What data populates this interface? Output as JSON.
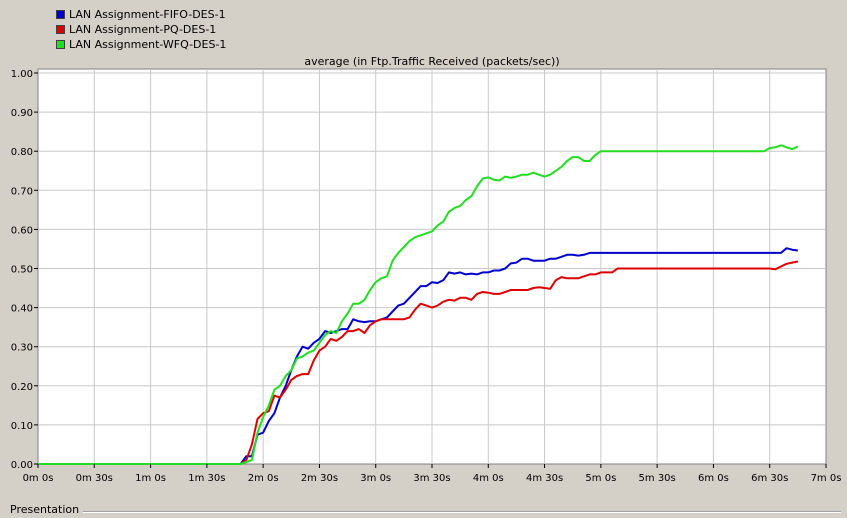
{
  "chart_data": {
    "type": "line",
    "title": "average (in Ftp.Traffic Received (packets/sec))",
    "xlabel": "",
    "ylabel": "",
    "xlim": [
      0,
      420
    ],
    "ylim": [
      0,
      1.0
    ],
    "x_ticks": [
      0,
      30,
      60,
      90,
      120,
      150,
      180,
      210,
      240,
      270,
      300,
      330,
      360,
      390,
      420
    ],
    "x_tick_labels": [
      "0m 0s",
      "0m 30s",
      "1m 0s",
      "1m 30s",
      "2m 0s",
      "2m 30s",
      "3m 0s",
      "3m 30s",
      "4m 0s",
      "4m 30s",
      "5m 0s",
      "5m 30s",
      "6m 0s",
      "6m 30s",
      "7m 0s"
    ],
    "y_ticks": [
      0,
      0.1,
      0.2,
      0.3,
      0.4,
      0.5,
      0.6,
      0.7,
      0.8,
      0.9,
      1.0
    ],
    "y_tick_labels": [
      "0.00",
      "0.10",
      "0.20",
      "0.30",
      "0.40",
      "0.50",
      "0.60",
      "0.70",
      "0.80",
      "0.90",
      "1.00"
    ],
    "grid": true,
    "legend_position": "top-left",
    "series": [
      {
        "name": "LAN Assignment-FIFO-DES-1",
        "color": "#0000cc",
        "x": [
          0,
          108,
          111,
          114,
          117,
          120,
          123,
          126,
          129,
          132,
          135,
          138,
          141,
          144,
          147,
          150,
          153,
          156,
          159,
          162,
          165,
          168,
          171,
          174,
          177,
          180,
          183,
          186,
          189,
          192,
          195,
          198,
          201,
          204,
          207,
          210,
          213,
          216,
          219,
          222,
          225,
          228,
          231,
          234,
          237,
          240,
          243,
          246,
          249,
          252,
          255,
          258,
          261,
          264,
          267,
          270,
          273,
          276,
          279,
          282,
          285,
          288,
          291,
          294,
          297,
          300,
          303,
          306,
          309,
          312,
          315,
          318,
          321,
          324,
          327,
          330,
          333,
          336,
          339,
          342,
          345,
          348,
          351,
          354,
          357,
          360,
          363,
          366,
          369,
          372,
          375,
          378,
          381,
          384,
          387,
          390,
          393,
          396,
          399,
          402,
          405
        ],
        "y": [
          0,
          0,
          0.02,
          0.02,
          0.075,
          0.08,
          0.11,
          0.13,
          0.17,
          0.2,
          0.24,
          0.275,
          0.3,
          0.295,
          0.31,
          0.32,
          0.34,
          0.335,
          0.34,
          0.345,
          0.345,
          0.37,
          0.365,
          0.363,
          0.365,
          0.365,
          0.37,
          0.375,
          0.39,
          0.405,
          0.41,
          0.425,
          0.44,
          0.455,
          0.455,
          0.465,
          0.463,
          0.47,
          0.49,
          0.487,
          0.49,
          0.485,
          0.487,
          0.485,
          0.49,
          0.49,
          0.495,
          0.495,
          0.5,
          0.513,
          0.515,
          0.525,
          0.525,
          0.52,
          0.52,
          0.52,
          0.525,
          0.525,
          0.53,
          0.535,
          0.535,
          0.533,
          0.535,
          0.54,
          0.54,
          0.54,
          0.54,
          0.54,
          0.54,
          0.54,
          0.54,
          0.54,
          0.54,
          0.54,
          0.54,
          0.54,
          0.54,
          0.54,
          0.54,
          0.54,
          0.54,
          0.54,
          0.54,
          0.54,
          0.54,
          0.54,
          0.54,
          0.54,
          0.54,
          0.54,
          0.54,
          0.54,
          0.54,
          0.54,
          0.54,
          0.54,
          0.54,
          0.54,
          0.552,
          0.548,
          0.546
        ]
      },
      {
        "name": "LAN Assignment-PQ-DES-1",
        "color": "#dd0000",
        "x": [
          0,
          108,
          111,
          114,
          117,
          120,
          123,
          126,
          129,
          132,
          135,
          138,
          141,
          144,
          147,
          150,
          153,
          156,
          159,
          162,
          165,
          168,
          171,
          174,
          177,
          180,
          183,
          186,
          189,
          192,
          195,
          198,
          201,
          204,
          207,
          210,
          213,
          216,
          219,
          222,
          225,
          228,
          231,
          234,
          237,
          240,
          243,
          246,
          249,
          252,
          255,
          258,
          261,
          264,
          267,
          270,
          273,
          276,
          279,
          282,
          285,
          288,
          291,
          294,
          297,
          300,
          303,
          306,
          309,
          312,
          315,
          318,
          321,
          324,
          327,
          330,
          333,
          336,
          339,
          342,
          345,
          348,
          351,
          354,
          357,
          360,
          363,
          366,
          369,
          372,
          375,
          378,
          381,
          384,
          387,
          390,
          393,
          396,
          399,
          402,
          405
        ],
        "y": [
          0,
          0,
          0.01,
          0.05,
          0.115,
          0.13,
          0.135,
          0.175,
          0.17,
          0.19,
          0.215,
          0.225,
          0.23,
          0.23,
          0.265,
          0.29,
          0.3,
          0.32,
          0.315,
          0.325,
          0.34,
          0.34,
          0.345,
          0.335,
          0.355,
          0.365,
          0.37,
          0.37,
          0.37,
          0.37,
          0.37,
          0.375,
          0.395,
          0.41,
          0.405,
          0.4,
          0.405,
          0.415,
          0.42,
          0.418,
          0.425,
          0.425,
          0.42,
          0.435,
          0.44,
          0.438,
          0.435,
          0.435,
          0.44,
          0.445,
          0.445,
          0.445,
          0.445,
          0.45,
          0.452,
          0.45,
          0.448,
          0.47,
          0.478,
          0.475,
          0.475,
          0.475,
          0.48,
          0.485,
          0.485,
          0.49,
          0.49,
          0.49,
          0.5,
          0.5,
          0.5,
          0.5,
          0.5,
          0.5,
          0.5,
          0.5,
          0.5,
          0.5,
          0.5,
          0.5,
          0.5,
          0.5,
          0.5,
          0.5,
          0.5,
          0.5,
          0.5,
          0.5,
          0.5,
          0.5,
          0.5,
          0.5,
          0.5,
          0.5,
          0.5,
          0.5,
          0.498,
          0.505,
          0.512,
          0.515,
          0.518
        ]
      },
      {
        "name": "LAN Assignment-WFQ-DES-1",
        "color": "#22dd22",
        "x": [
          0,
          108,
          111,
          114,
          117,
          120,
          123,
          126,
          129,
          132,
          135,
          138,
          141,
          144,
          147,
          150,
          153,
          156,
          159,
          162,
          165,
          168,
          171,
          174,
          177,
          180,
          183,
          186,
          189,
          192,
          195,
          198,
          201,
          204,
          207,
          210,
          213,
          216,
          219,
          222,
          225,
          228,
          231,
          234,
          237,
          240,
          243,
          246,
          249,
          252,
          255,
          258,
          261,
          264,
          267,
          270,
          273,
          276,
          279,
          282,
          285,
          288,
          291,
          294,
          297,
          300,
          303,
          306,
          309,
          312,
          315,
          318,
          321,
          324,
          327,
          330,
          333,
          336,
          339,
          342,
          345,
          348,
          351,
          354,
          357,
          360,
          363,
          366,
          369,
          372,
          375,
          378,
          381,
          384,
          387,
          390,
          393,
          396,
          399,
          402,
          405
        ],
        "y": [
          0,
          0,
          0.005,
          0.01,
          0.08,
          0.12,
          0.15,
          0.19,
          0.2,
          0.225,
          0.24,
          0.27,
          0.275,
          0.285,
          0.29,
          0.31,
          0.33,
          0.34,
          0.335,
          0.365,
          0.385,
          0.41,
          0.41,
          0.42,
          0.445,
          0.465,
          0.475,
          0.48,
          0.52,
          0.54,
          0.555,
          0.57,
          0.58,
          0.585,
          0.59,
          0.595,
          0.61,
          0.62,
          0.645,
          0.655,
          0.66,
          0.675,
          0.685,
          0.71,
          0.73,
          0.733,
          0.727,
          0.725,
          0.735,
          0.732,
          0.735,
          0.74,
          0.74,
          0.745,
          0.74,
          0.735,
          0.74,
          0.75,
          0.76,
          0.775,
          0.785,
          0.785,
          0.775,
          0.775,
          0.79,
          0.8,
          0.8,
          0.8,
          0.8,
          0.8,
          0.8,
          0.8,
          0.8,
          0.8,
          0.8,
          0.8,
          0.8,
          0.8,
          0.8,
          0.8,
          0.8,
          0.8,
          0.8,
          0.8,
          0.8,
          0.8,
          0.8,
          0.8,
          0.8,
          0.8,
          0.8,
          0.8,
          0.8,
          0.8,
          0.8,
          0.808,
          0.81,
          0.815,
          0.81,
          0.805,
          0.812
        ]
      }
    ]
  },
  "bottom_bar": {
    "label": "Presentation"
  }
}
